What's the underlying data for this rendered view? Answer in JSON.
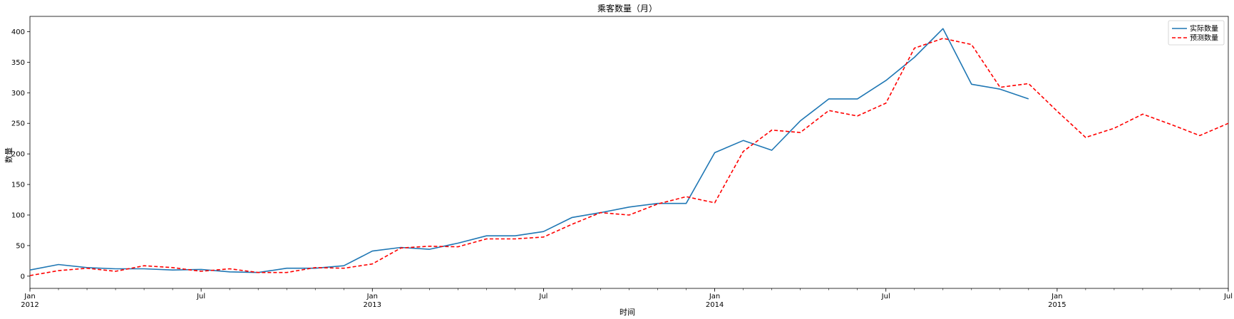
{
  "chart_data": {
    "type": "line",
    "title": "乘客数量（月）",
    "xlabel": "时间",
    "ylabel": "数量",
    "x_range": [
      "2012-01",
      "2015-07"
    ],
    "ylim": [
      -20,
      425
    ],
    "grid": false,
    "legend_position": "top-right",
    "y_ticks": [
      0,
      50,
      100,
      150,
      200,
      250,
      300,
      350,
      400
    ],
    "x_ticks": [
      {
        "date": "2012-01",
        "label": "Jan",
        "year": "2012"
      },
      {
        "date": "2012-07",
        "label": "Jul",
        "year": ""
      },
      {
        "date": "2013-01",
        "label": "Jan",
        "year": "2013"
      },
      {
        "date": "2013-07",
        "label": "Jul",
        "year": ""
      },
      {
        "date": "2014-01",
        "label": "Jan",
        "year": "2014"
      },
      {
        "date": "2014-07",
        "label": "Jul",
        "year": ""
      },
      {
        "date": "2015-01",
        "label": "Jan",
        "year": "2015"
      },
      {
        "date": "2015-07",
        "label": "Jul",
        "year": ""
      }
    ],
    "series": [
      {
        "name": "实际数量",
        "color": "#1f77b4",
        "style": "solid",
        "x": [
          "2012-01",
          "2012-02",
          "2012-03",
          "2012-04",
          "2012-05",
          "2012-06",
          "2012-07",
          "2012-08",
          "2012-09",
          "2012-10",
          "2012-11",
          "2012-12",
          "2013-01",
          "2013-02",
          "2013-03",
          "2013-04",
          "2013-05",
          "2013-06",
          "2013-07",
          "2013-08",
          "2013-09",
          "2013-10",
          "2013-11",
          "2013-12",
          "2014-01",
          "2014-02",
          "2014-03",
          "2014-04",
          "2014-05",
          "2014-06",
          "2014-07",
          "2014-08",
          "2014-09",
          "2014-10",
          "2014-11",
          "2014-12"
        ],
        "values": [
          10,
          19,
          14,
          12,
          12,
          10,
          11,
          7,
          6,
          13,
          13,
          17,
          41,
          47,
          44,
          54,
          66,
          66,
          73,
          96,
          104,
          113,
          119,
          119,
          202,
          222,
          206,
          254,
          290,
          290,
          320,
          358,
          405,
          314,
          306,
          290
        ]
      },
      {
        "name": "预测数量",
        "color": "#ff0000",
        "style": "dashed",
        "x": [
          "2012-01",
          "2012-02",
          "2012-03",
          "2012-04",
          "2012-05",
          "2012-06",
          "2012-07",
          "2012-08",
          "2012-09",
          "2012-10",
          "2012-11",
          "2012-12",
          "2013-01",
          "2013-02",
          "2013-03",
          "2013-04",
          "2013-05",
          "2013-06",
          "2013-07",
          "2013-08",
          "2013-09",
          "2013-10",
          "2013-11",
          "2013-12",
          "2014-01",
          "2014-02",
          "2014-03",
          "2014-04",
          "2014-05",
          "2014-06",
          "2014-07",
          "2014-08",
          "2014-09",
          "2014-10",
          "2014-11",
          "2014-12",
          "2015-01",
          "2015-02",
          "2015-03",
          "2015-04",
          "2015-05",
          "2015-06",
          "2015-07"
        ],
        "values": [
          1,
          9,
          13,
          8,
          17,
          14,
          8,
          12,
          6,
          6,
          14,
          13,
          20,
          46,
          49,
          48,
          61,
          61,
          64,
          85,
          104,
          100,
          118,
          130,
          120,
          204,
          239,
          235,
          271,
          262,
          283,
          373,
          389,
          379,
          309,
          315,
          270,
          227,
          242,
          265,
          248,
          230,
          250
        ]
      }
    ]
  }
}
